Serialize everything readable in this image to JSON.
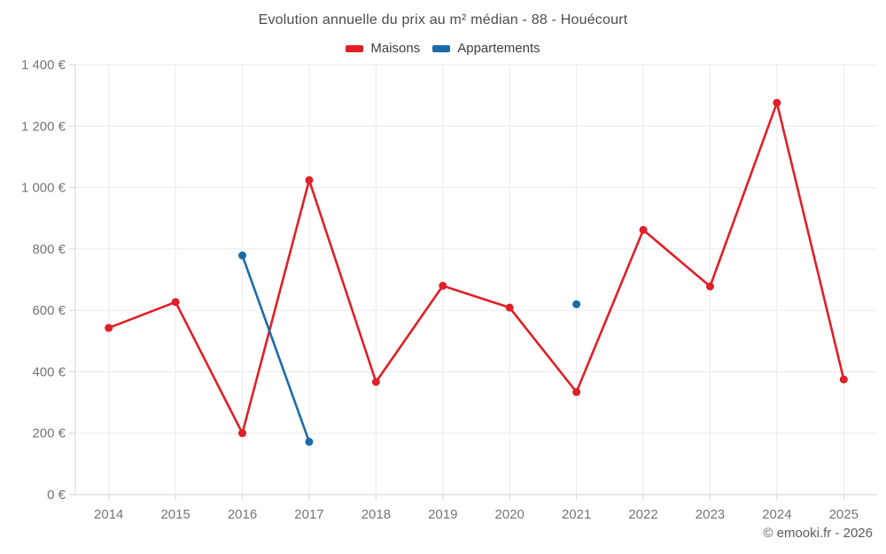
{
  "header": {
    "title": "Evolution annuelle du prix au m² médian - 88 - Houécourt"
  },
  "legend": {
    "items": [
      {
        "label": "Maisons",
        "color": "#e01f26"
      },
      {
        "label": "Appartements",
        "color": "#1a6ca8"
      }
    ]
  },
  "chart_data": {
    "type": "line",
    "title": "Evolution annuelle du prix au m² médian - 88 - Houécourt",
    "categories": [
      "2014",
      "2015",
      "2016",
      "2017",
      "2018",
      "2019",
      "2020",
      "2021",
      "2022",
      "2023",
      "2024",
      "2025"
    ],
    "series": [
      {
        "name": "Maisons",
        "color": "#e01f26",
        "values": [
          543,
          627,
          200,
          1024,
          367,
          680,
          609,
          334,
          862,
          678,
          1276,
          375
        ]
      },
      {
        "name": "Appartements",
        "color": "#1a6ca8",
        "values": [
          null,
          null,
          779,
          172,
          null,
          null,
          null,
          620,
          null,
          null,
          null,
          null
        ]
      }
    ],
    "xlabel": "",
    "ylabel": "",
    "ylim": [
      0,
      1400
    ],
    "y_ticks": [
      {
        "value": 0,
        "label": "0 €"
      },
      {
        "value": 200,
        "label": "200 €"
      },
      {
        "value": 400,
        "label": "400 €"
      },
      {
        "value": 600,
        "label": "600 €"
      },
      {
        "value": 800,
        "label": "800 €"
      },
      {
        "value": 1000,
        "label": "1 000 €"
      },
      {
        "value": 1200,
        "label": "1 200 €"
      },
      {
        "value": 1400,
        "label": "1 400 €"
      }
    ],
    "grid": true,
    "legend_position": "top"
  },
  "theme": {
    "grid_color": "#ebebeb",
    "axis_color": "#d6d6d6",
    "tick_color": "#d6d6d6",
    "label_color": "#757575",
    "title_color": "#4c4c4c"
  },
  "footer": {
    "copyright": "© emooki.fr - 2026"
  }
}
